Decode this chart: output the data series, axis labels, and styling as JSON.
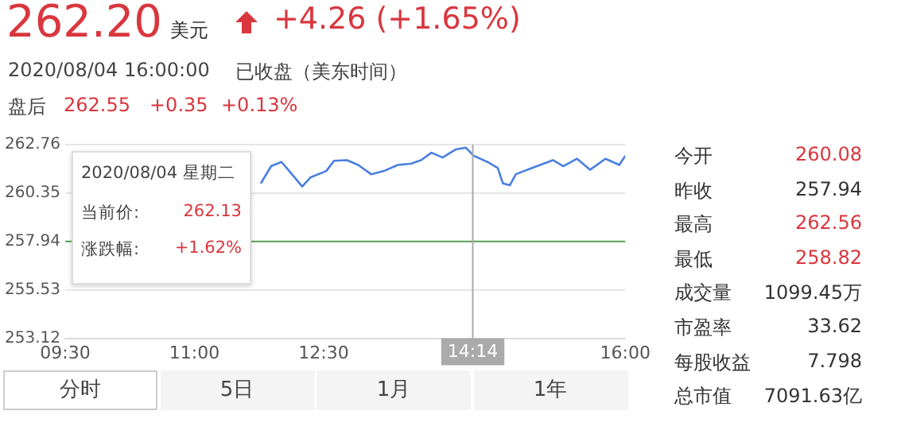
{
  "chart_data": {
    "type": "line",
    "x": [
      11.77,
      11.89,
      12.01,
      12.1,
      12.25,
      12.35,
      12.53,
      12.62,
      12.77,
      12.9,
      13.05,
      13.2,
      13.36,
      13.51,
      13.63,
      13.75,
      13.88,
      14.03,
      14.15,
      14.24,
      14.4,
      14.52,
      14.58,
      14.66,
      14.73,
      14.92,
      15.16,
      15.28,
      15.44,
      15.59,
      15.77,
      15.93,
      16.0
    ],
    "series": [
      {
        "color": "#4a7fe0",
        "values": [
          260.83,
          261.69,
          261.9,
          261.45,
          260.68,
          261.14,
          261.45,
          261.96,
          261.99,
          261.75,
          261.29,
          261.45,
          261.75,
          261.81,
          261.99,
          262.36,
          262.12,
          262.52,
          262.61,
          262.21,
          261.9,
          261.6,
          260.83,
          260.74,
          261.29,
          261.6,
          261.99,
          261.69,
          262.06,
          261.51,
          262.06,
          261.75,
          262.21
        ]
      }
    ],
    "xlim": [
      9.5,
      16
    ],
    "xticks": [
      {
        "value": 9.5,
        "label": "09:30"
      },
      {
        "value": 11,
        "label": "11:00"
      },
      {
        "value": 12.5,
        "label": "12:30"
      },
      {
        "value": 16,
        "label": "16:00"
      }
    ],
    "ylim": [
      253.12,
      262.76
    ],
    "yticks": [
      253.12,
      255.53,
      257.94,
      260.35,
      262.76
    ],
    "grid": "y",
    "marker": "none",
    "line_style": "solid",
    "legend": false,
    "ref_lines": [
      {
        "axis": "y",
        "value": 257.94,
        "color": "#5aa05a"
      },
      {
        "axis": "x",
        "value": 14.23,
        "label": "14:14",
        "color": "#aaaaaa"
      }
    ],
    "annotations": [
      "262.20",
      "美元",
      "+4.26 (+1.65%)",
      "2020/08/04 16:00:00",
      "已收盘（美东时间）",
      "盘后",
      "262.55",
      "+0.35",
      "+0.13%",
      "2020/08/04 星期二",
      "当前价:",
      "262.13",
      "涨跌幅:",
      "+1.62%",
      "分时",
      "5日",
      "1月",
      "1年",
      "今开",
      "260.08",
      "昨收",
      "257.94",
      "最高",
      "262.56",
      "最低",
      "258.82",
      "成交量",
      "1099.45万",
      "市盈率",
      "33.62",
      "每股收益",
      "7.798",
      "总市值",
      "7091.63亿"
    ]
  }
}
